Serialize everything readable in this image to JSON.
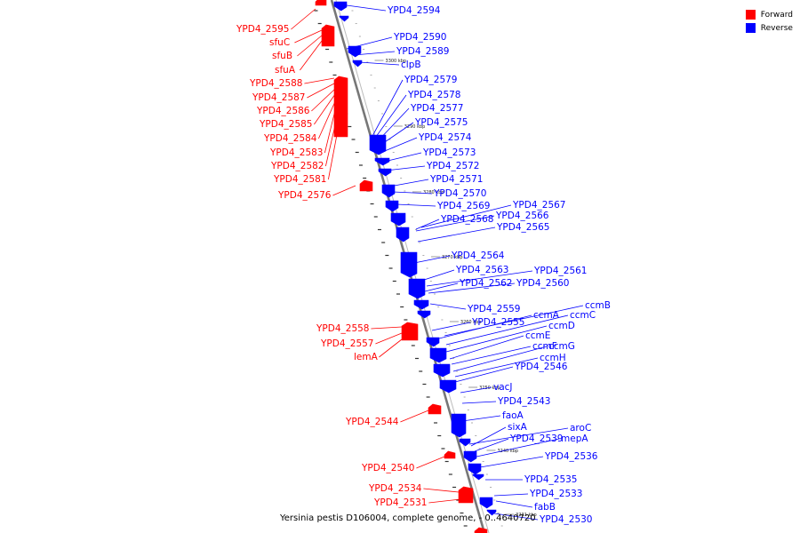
{
  "legend": {
    "forward": "Forward",
    "reverse": "Reverse",
    "forward_color": "#ff0000",
    "reverse_color": "#0000ff"
  },
  "caption": "Yersinia pestis D106004, complete genome, - 0..4640720",
  "ticks": [
    "3300 kbp",
    "3290 kbp",
    "3280 kbp",
    "3270 kbp",
    "3260 kbp",
    "3250 kbp",
    "3240 kbp",
    "3231 kbp"
  ],
  "forward_labels": [
    "YPD4_2595",
    "sfuC",
    "sfuB",
    "sfuA",
    "YPD4_2588",
    "YPD4_2587",
    "YPD4_2586",
    "YPD4_2585",
    "YPD4_2584",
    "YPD4_2583",
    "YPD4_2582",
    "YPD4_2581",
    "YPD4_2576",
    "YPD4_2558",
    "YPD4_2557",
    "lemA",
    "YPD4_2544",
    "YPD4_2540",
    "YPD4_2534",
    "YPD4_2531"
  ],
  "reverse_labels": [
    "YPD4_2594",
    "YPD4_2590",
    "YPD4_2589",
    "clpB",
    "YPD4_2579",
    "YPD4_2578",
    "YPD4_2577",
    "YPD4_2575",
    "YPD4_2574",
    "YPD4_2573",
    "YPD4_2572",
    "YPD4_2571",
    "YPD4_2570",
    "YPD4_2569",
    "YPD4_2567",
    "YPD4_2568",
    "YPD4_2566",
    "YPD4_2565",
    "YPD4_2564",
    "YPD4_2563",
    "YPD4_2561",
    "YPD4_2562",
    "YPD4_2560",
    "ccmB",
    "YPD4_2559",
    "ccmA",
    "ccmC",
    "YPD4_2555",
    "ccmD",
    "ccmE",
    "ccmF",
    "ccmG",
    "ccmH",
    "YPD4_2546",
    "vacJ",
    "YPD4_2543",
    "faoA",
    "aroC",
    "sixA",
    "YPD4_2539",
    "mepA",
    "YPD4_2536",
    "YPD4_2535",
    "YPD4_2533",
    "fabB",
    "YPD4_2530"
  ]
}
